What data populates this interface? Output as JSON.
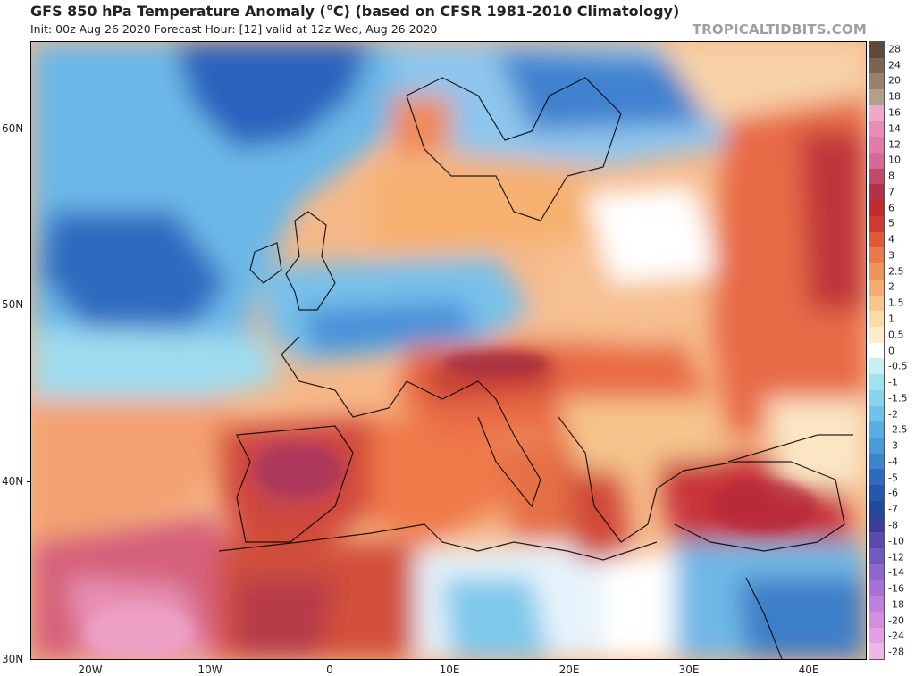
{
  "header": {
    "title": "GFS 850 hPa Temperature Anomaly (°C) (based on CFSR 1981-2010 Climatology)",
    "subtitle": "Init: 00z Aug 26 2020   Forecast Hour: [12]   valid at 12z Wed, Aug 26 2020",
    "brand": "TROPICALTIDBITS.COM"
  },
  "axes": {
    "lat_labels": [
      "60N",
      "50N",
      "40N",
      "30N"
    ],
    "lon_labels": [
      "20W",
      "10W",
      "0",
      "10E",
      "20E",
      "30E",
      "40E"
    ]
  },
  "colorbar": {
    "labels": [
      "28",
      "24",
      "20",
      "18",
      "16",
      "14",
      "12",
      "10",
      "8",
      "7",
      "6",
      "5",
      "4",
      "3",
      "2.5",
      "2",
      "1.5",
      "1",
      "0.5",
      "0",
      "-0.5",
      "-1",
      "-1.5",
      "-2",
      "-2.5",
      "-3",
      "-4",
      "-5",
      "-6",
      "-7",
      "-8",
      "-10",
      "-12",
      "-14",
      "-16",
      "-18",
      "-20",
      "-24",
      "-28"
    ],
    "colors": [
      "#5e4a3a",
      "#7a6452",
      "#97816e",
      "#b49f8c",
      "#f0a7c8",
      "#e98bb7",
      "#e27ba6",
      "#d4699a",
      "#c04a6a",
      "#b1324a",
      "#c02a30",
      "#d03a2e",
      "#e05a3a",
      "#ea7a4a",
      "#f0955a",
      "#f4ad6e",
      "#f8c68a",
      "#fbdca8",
      "#fdeecb",
      "#ffffff",
      "#c9f0f0",
      "#9fe3ef",
      "#86d4ee",
      "#6fc3ea",
      "#58afe2",
      "#4a99d8",
      "#3d82cc",
      "#2f6abf",
      "#2556ad",
      "#22489a",
      "#3b3f9c",
      "#5a4aae",
      "#7358c0",
      "#8e66cc",
      "#a870d4",
      "#c07fdc",
      "#d48ee0",
      "#e4a0e4",
      "#f0b6ea"
    ]
  }
}
